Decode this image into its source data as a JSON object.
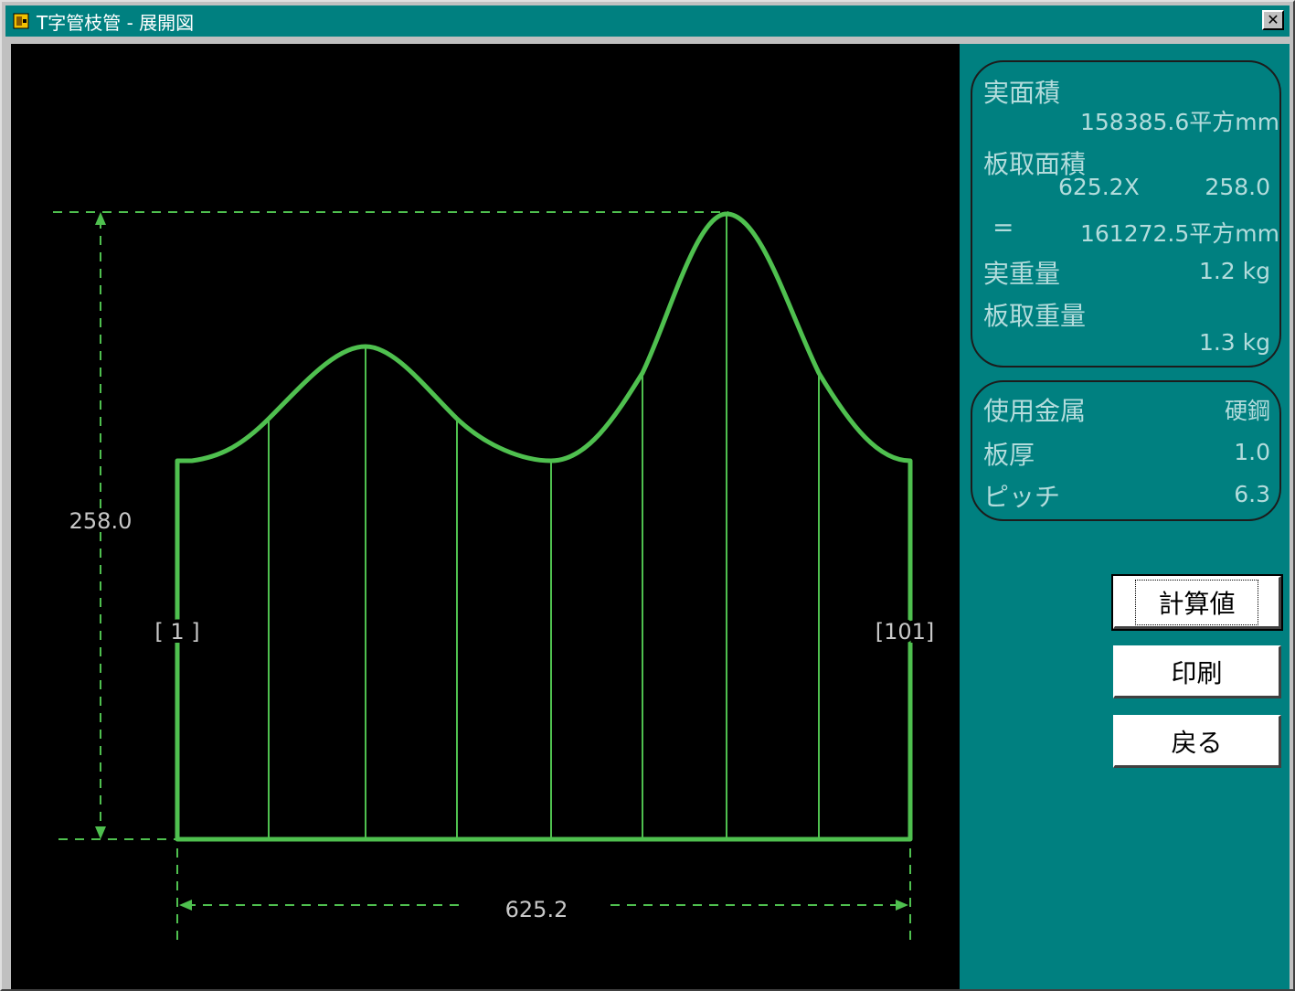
{
  "window": {
    "title": "T字管枝管 - 展開図"
  },
  "drawing": {
    "height_dim": "258.0",
    "width_dim": "625.2",
    "label_left": "[ 1 ]",
    "label_right": "[101]"
  },
  "area_panel": {
    "real_area_label": "実面積",
    "real_area_value": "158385.6平方mm",
    "plate_area_label": "板取面積",
    "plate_width": "625.2X",
    "plate_height": "258.0",
    "equals": "=",
    "plate_area_value": "161272.5平方mm",
    "real_weight_label": "実重量",
    "real_weight_value": "1.2 kg",
    "plate_weight_label": "板取重量",
    "plate_weight_value": "1.3 kg"
  },
  "material_panel": {
    "metal_label": "使用金属",
    "metal_value": "硬鋼",
    "thickness_label": "板厚",
    "thickness_value": "1.0",
    "pitch_label": "ピッチ",
    "pitch_value": "6.3"
  },
  "buttons": {
    "calc": "計算値",
    "print": "印刷",
    "back": "戻る"
  },
  "colors": {
    "drawing_green": "#4fc04f",
    "panel_bg": "#008080",
    "panel_text": "#b3dcdc"
  }
}
